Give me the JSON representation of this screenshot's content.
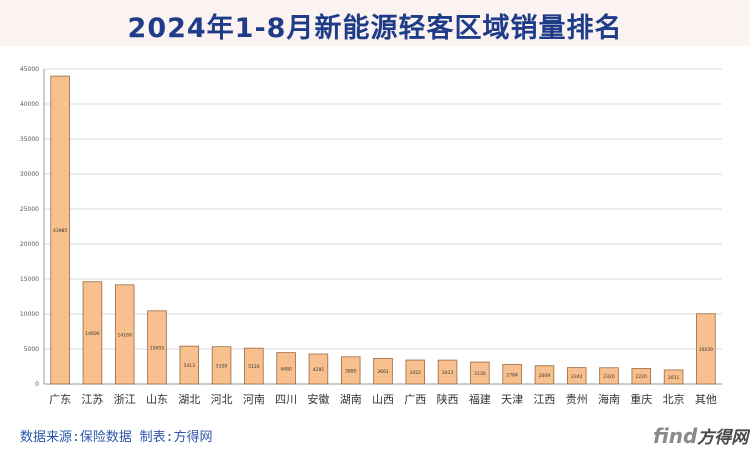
{
  "header": {
    "title": "2024年1-8月新能源轻客区域销量排名"
  },
  "footer": {
    "source": "数据来源:保险数据 制表:方得网"
  },
  "logo": {
    "latin": "find",
    "cn": "方得网"
  },
  "colors": {
    "bar_fill": "#f8c08e",
    "bar_stroke": "#9a6a40",
    "title": "#1f3c88",
    "source": "#2b57a8",
    "grid": "#d8d8d8"
  },
  "chart_data": {
    "type": "bar",
    "title": "2024年1-8月新能源轻客区域销量排名",
    "xlabel": "",
    "ylabel": "",
    "ylim": [
      0,
      45000
    ],
    "yticks": [
      0,
      5000,
      10000,
      15000,
      20000,
      25000,
      30000,
      35000,
      40000,
      45000
    ],
    "grid": true,
    "legend": "none",
    "categories": [
      "广东",
      "江苏",
      "浙江",
      "山东",
      "湖北",
      "河北",
      "河南",
      "四川",
      "安徽",
      "湖南",
      "山西",
      "广西",
      "陕西",
      "福建",
      "天津",
      "江西",
      "贵州",
      "海南",
      "重庆",
      "北京",
      "其他"
    ],
    "values": [
      43985,
      14606,
      14169,
      10455,
      5413,
      5328,
      5120,
      4480,
      4285,
      3880,
      3661,
      3422,
      3413,
      3130,
      2784,
      2609,
      2342,
      2320,
      2220,
      2011,
      10039
    ]
  }
}
